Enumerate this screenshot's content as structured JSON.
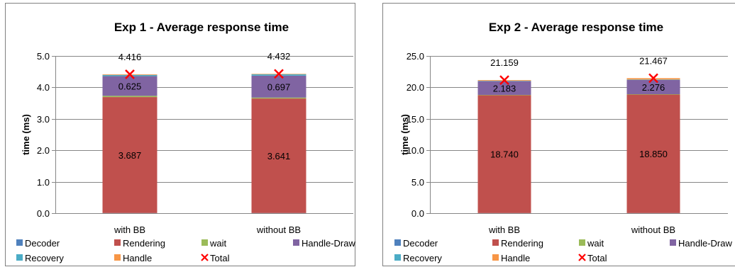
{
  "colors": {
    "Decoder": "#4F81BD",
    "Rendering": "#C0504D",
    "wait": "#9BBB59",
    "Handle-Draw": "#8064A2",
    "Recovery": "#4BACC6",
    "Handle": "#F79646",
    "Total": "#FF0000"
  },
  "chart_data": [
    {
      "type": "bar",
      "stacked": true,
      "title": "Exp 1 - Average response time",
      "ylabel": "time (ms)",
      "xlabel": "",
      "categories": [
        "with BB",
        "without BB"
      ],
      "ylim": [
        0,
        5
      ],
      "ytick_labels": [
        "0.0",
        "1.0",
        "2.0",
        "3.0",
        "4.0",
        "5.0"
      ],
      "grid": true,
      "legend_position": "bottom",
      "series": [
        {
          "name": "Decoder",
          "values": [
            0.005,
            0.005
          ]
        },
        {
          "name": "Rendering",
          "values": [
            3.687,
            3.641
          ]
        },
        {
          "name": "wait",
          "values": [
            0.04,
            0.03
          ]
        },
        {
          "name": "Handle-Draw",
          "values": [
            0.625,
            0.697
          ]
        },
        {
          "name": "Recovery",
          "values": [
            0.04,
            0.045
          ]
        },
        {
          "name": "Handle",
          "values": [
            0.019,
            0.014
          ]
        }
      ],
      "segment_labels": {
        "Rendering": [
          "3.687",
          "3.641"
        ],
        "Handle-Draw": [
          "0.625",
          "0.697"
        ]
      },
      "total": {
        "name": "Total",
        "values": [
          4.416,
          4.432
        ],
        "labels": [
          "4.416",
          "4.432"
        ]
      }
    },
    {
      "type": "bar",
      "stacked": true,
      "title": "Exp 2 - Average response time",
      "ylabel": "time (ms)",
      "xlabel": "",
      "categories": [
        "with BB",
        "without BB"
      ],
      "ylim": [
        0,
        25
      ],
      "ytick_labels": [
        "0.0",
        "5.0",
        "10.0",
        "15.0",
        "20.0",
        "25.0"
      ],
      "grid": true,
      "legend_position": "bottom",
      "series": [
        {
          "name": "Decoder",
          "values": [
            0.02,
            0.02
          ]
        },
        {
          "name": "Rendering",
          "values": [
            18.74,
            18.85
          ]
        },
        {
          "name": "wait",
          "values": [
            0.05,
            0.05
          ]
        },
        {
          "name": "Handle-Draw",
          "values": [
            2.183,
            2.276
          ]
        },
        {
          "name": "Recovery",
          "values": [
            0.05,
            0.05
          ]
        },
        {
          "name": "Handle",
          "values": [
            0.116,
            0.221
          ]
        }
      ],
      "segment_labels": {
        "Rendering": [
          "18.740",
          "18.850"
        ],
        "Handle-Draw": [
          "2.183",
          "2.276"
        ]
      },
      "total": {
        "name": "Total",
        "values": [
          21.159,
          21.467
        ],
        "labels": [
          "21.159",
          "21.467"
        ]
      }
    }
  ]
}
